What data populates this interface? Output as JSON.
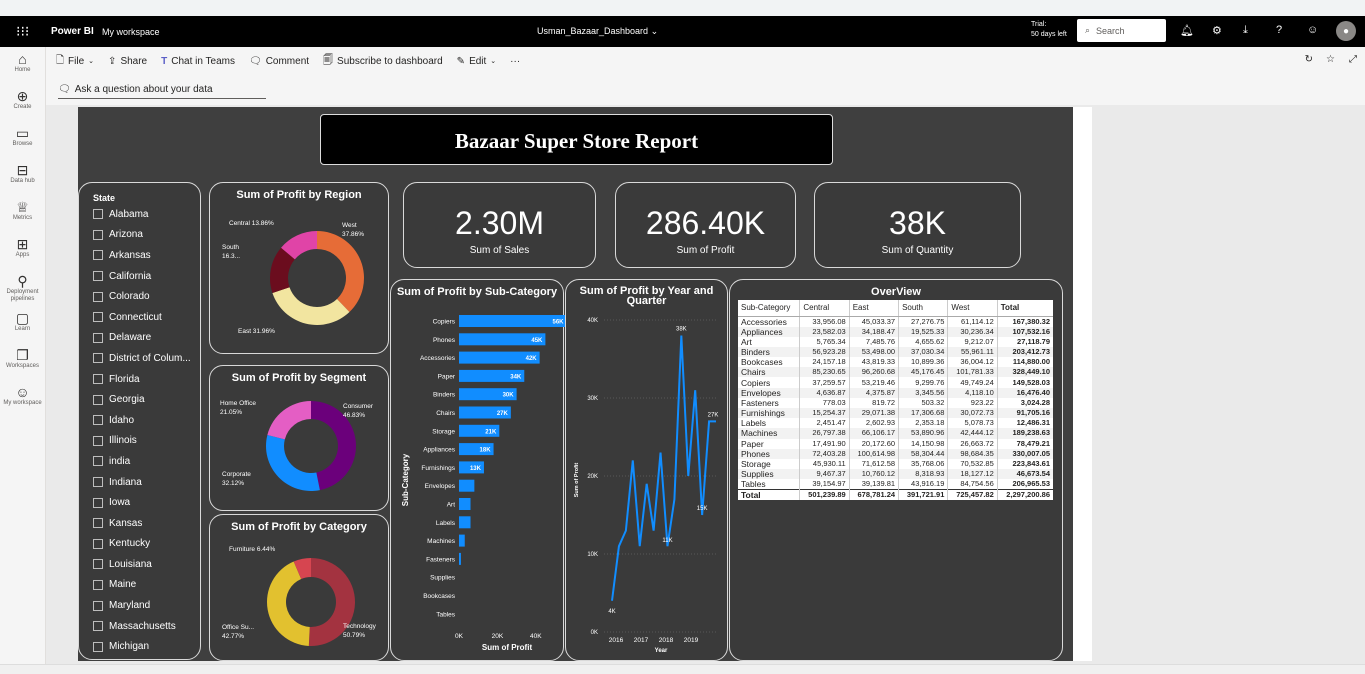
{
  "topbar": {
    "app_name": "Power BI",
    "workspace": "My workspace",
    "dashboard_title": "Usman_Bazaar_Dashboard",
    "trial_line1": "Trial:",
    "trial_line2": "50 days left",
    "search_placeholder": "Search"
  },
  "leftnav": [
    {
      "label": "Home",
      "icon": "home-icon"
    },
    {
      "label": "Create",
      "icon": "create-icon"
    },
    {
      "label": "Browse",
      "icon": "folder-icon"
    },
    {
      "label": "Data hub",
      "icon": "datahub-icon"
    },
    {
      "label": "Metrics",
      "icon": "trophy-icon"
    },
    {
      "label": "Apps",
      "icon": "apps-icon"
    },
    {
      "label": "Deployment pipelines",
      "icon": "rocket-icon"
    },
    {
      "label": "Learn",
      "icon": "book-icon"
    },
    {
      "label": "Workspaces",
      "icon": "workspaces-icon"
    },
    {
      "label": "My workspace",
      "icon": "user-icon"
    }
  ],
  "cmdbar": {
    "file": "File",
    "share": "Share",
    "teams": "Chat in Teams",
    "comment": "Comment",
    "subscribe": "Subscribe to dashboard",
    "edit": "Edit",
    "more": "···"
  },
  "qna": {
    "placeholder": "Ask a question about your data"
  },
  "report": {
    "title": "Bazaar Super Store Report",
    "slicer_title": "State",
    "states": [
      "Alabama",
      "Arizona",
      "Arkansas",
      "California",
      "Colorado",
      "Connecticut",
      "Delaware",
      "District of Colum...",
      "Florida",
      "Georgia",
      "Idaho",
      "Illinois",
      "india",
      "Indiana",
      "Iowa",
      "Kansas",
      "Kentucky",
      "Louisiana",
      "Maine",
      "Maryland",
      "Massachusetts",
      "Michigan"
    ],
    "kpis": [
      {
        "value": "2.30M",
        "label": "Sum of Sales"
      },
      {
        "value": "286.40K",
        "label": "Sum of Profit"
      },
      {
        "value": "38K",
        "label": "Sum of Quantity"
      }
    ],
    "region_title": "Sum of Profit by Region",
    "segment_title": "Sum of Profit by Segment",
    "category_title": "Sum of Profit by Category",
    "subcat_title": "Sum of Profit by Sub-Category",
    "year_title_1": "Sum of Profit by Year and",
    "year_title_2": "Quarter",
    "overview_title": "OverView"
  },
  "colors": {
    "bar": "#118dff",
    "west": "#e66c37",
    "east": "#f2e5a0",
    "south": "#6b0d1e",
    "central": "#e044a7",
    "consumer": "#6b007b",
    "corporate": "#118dff",
    "homeoffice": "#e45ec4",
    "technology": "#a33340",
    "office_supplies": "#e2c12f",
    "furniture": "#d64550"
  },
  "chart_data": [
    {
      "type": "pie",
      "title": "Sum of Profit by Region",
      "labels": [
        "West",
        "East",
        "South",
        "Central"
      ],
      "values": [
        37.86,
        31.96,
        16.3,
        13.86
      ],
      "data_labels": [
        "West 37.86%",
        "East 31.96%",
        "South 16.3...",
        "Central 13.86%"
      ]
    },
    {
      "type": "pie",
      "title": "Sum of Profit by Segment",
      "labels": [
        "Consumer",
        "Corporate",
        "Home Office"
      ],
      "values": [
        46.83,
        32.12,
        21.05
      ],
      "data_labels": [
        "Consumer 46.83%",
        "Corporate 32.12%",
        "Home Office 21.05%"
      ]
    },
    {
      "type": "pie",
      "title": "Sum of Profit by Category",
      "labels": [
        "Technology",
        "Office Su...",
        "Furniture"
      ],
      "values": [
        50.79,
        42.77,
        6.44
      ],
      "data_labels": [
        "Technology 50.79%",
        "Office Su... 42.77%",
        "Furniture 6.44%"
      ]
    },
    {
      "type": "bar",
      "title": "Sum of Profit by Sub-Category",
      "categories": [
        "Copiers",
        "Phones",
        "Accessories",
        "Paper",
        "Binders",
        "Chairs",
        "Storage",
        "Appliances",
        "Furnishings",
        "Envelopes",
        "Art",
        "Labels",
        "Machines",
        "Fasteners",
        "Supplies",
        "Bookcases",
        "Tables"
      ],
      "values": [
        56,
        45,
        42,
        34,
        30,
        27,
        21,
        18,
        13,
        8,
        6,
        6,
        3,
        1,
        0,
        0,
        0
      ],
      "data_labels": [
        "56K",
        "45K",
        "42K",
        "34K",
        "30K",
        "27K",
        "21K",
        "18K",
        "13K",
        "",
        "",
        "",
        "",
        "",
        "",
        "",
        ""
      ],
      "xlabel": "Sum of Profit",
      "ylabel": "Sub-Category",
      "xticks": [
        "0K",
        "20K",
        "40K"
      ],
      "xlim": [
        0,
        50
      ]
    },
    {
      "type": "line",
      "title": "Sum of Profit by Year and Quarter",
      "x": [
        "2016 Q1",
        "2016 Q2",
        "2016 Q3",
        "2016 Q4",
        "2017 Q1",
        "2017 Q2",
        "2017 Q3",
        "2017 Q4",
        "2018 Q1",
        "2018 Q2",
        "2018 Q3",
        "2018 Q4",
        "2019 Q1",
        "2019 Q2",
        "2019 Q3",
        "2019 Q4"
      ],
      "values": [
        4,
        11,
        13,
        22,
        11,
        19,
        13,
        23,
        11,
        17,
        38,
        20,
        31,
        15,
        27,
        27
      ],
      "ylim": [
        0,
        40
      ],
      "yticks": [
        "0K",
        "10K",
        "20K",
        "30K",
        "40K"
      ],
      "xticks": [
        "2016",
        "2017",
        "2018",
        "2019"
      ],
      "xlabel": "Year",
      "ylabel": "Sum of Profit",
      "point_labels": [
        {
          "i": 0,
          "text": "4K"
        },
        {
          "i": 8,
          "text": "11K"
        },
        {
          "i": 10,
          "text": "38K"
        },
        {
          "i": 13,
          "text": "15K"
        },
        {
          "i": 15,
          "text": "27K"
        }
      ]
    },
    {
      "type": "table",
      "title": "OverView",
      "columns": [
        "Sub-Category",
        "Central",
        "East",
        "South",
        "West",
        "Total"
      ],
      "rows": [
        [
          "Accessories",
          "33,956.08",
          "45,033.37",
          "27,276.75",
          "61,114.12",
          "167,380.32"
        ],
        [
          "Appliances",
          "23,582.03",
          "34,188.47",
          "19,525.33",
          "30,236.34",
          "107,532.16"
        ],
        [
          "Art",
          "5,765.34",
          "7,485.76",
          "4,655.62",
          "9,212.07",
          "27,118.79"
        ],
        [
          "Binders",
          "56,923.28",
          "53,498.00",
          "37,030.34",
          "55,961.11",
          "203,412.73"
        ],
        [
          "Bookcases",
          "24,157.18",
          "43,819.33",
          "10,899.36",
          "36,004.12",
          "114,880.00"
        ],
        [
          "Chairs",
          "85,230.65",
          "96,260.68",
          "45,176.45",
          "101,781.33",
          "328,449.10"
        ],
        [
          "Copiers",
          "37,259.57",
          "53,219.46",
          "9,299.76",
          "49,749.24",
          "149,528.03"
        ],
        [
          "Envelopes",
          "4,636.87",
          "4,375.87",
          "3,345.56",
          "4,118.10",
          "16,476.40"
        ],
        [
          "Fasteners",
          "778.03",
          "819.72",
          "503.32",
          "923.22",
          "3,024.28"
        ],
        [
          "Furnishings",
          "15,254.37",
          "29,071.38",
          "17,306.68",
          "30,072.73",
          "91,705.16"
        ],
        [
          "Labels",
          "2,451.47",
          "2,602.93",
          "2,353.18",
          "5,078.73",
          "12,486.31"
        ],
        [
          "Machines",
          "26,797.38",
          "66,106.17",
          "53,890.96",
          "42,444.12",
          "189,238.63"
        ],
        [
          "Paper",
          "17,491.90",
          "20,172.60",
          "14,150.98",
          "26,663.72",
          "78,479.21"
        ],
        [
          "Phones",
          "72,403.28",
          "100,614.98",
          "58,304.44",
          "98,684.35",
          "330,007.05"
        ],
        [
          "Storage",
          "45,930.11",
          "71,612.58",
          "35,768.06",
          "70,532.85",
          "223,843.61"
        ],
        [
          "Supplies",
          "9,467.37",
          "10,760.12",
          "8,318.93",
          "18,127.12",
          "46,673.54"
        ],
        [
          "Tables",
          "39,154.97",
          "39,139.81",
          "43,916.19",
          "84,754.56",
          "206,965.53"
        ]
      ],
      "total": [
        "Total",
        "501,239.89",
        "678,781.24",
        "391,721.91",
        "725,457.82",
        "2,297,200.86"
      ]
    }
  ]
}
